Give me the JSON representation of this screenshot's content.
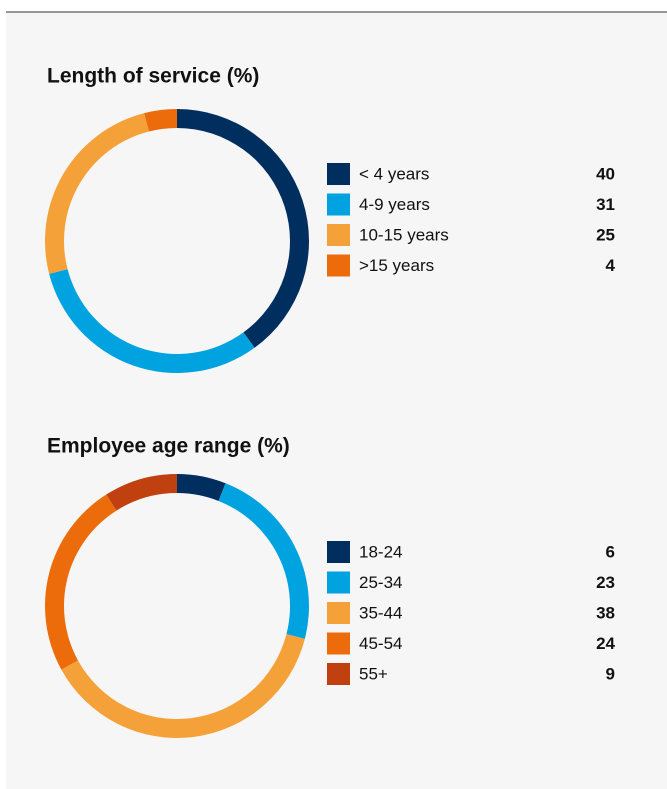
{
  "chart_data": [
    {
      "type": "donut",
      "title": "Length of service (%)",
      "categories": [
        "< 4 years",
        "4-9 years",
        "10-15 years",
        ">15 years"
      ],
      "values": [
        40,
        31,
        25,
        4
      ],
      "colors": [
        "#002f5f",
        "#00a3e0",
        "#f5a13a",
        "#ec6c0c"
      ]
    },
    {
      "type": "donut",
      "title": "Employee age range (%)",
      "categories": [
        "18-24",
        "25-34",
        "35-44",
        "45-54",
        "55+"
      ],
      "values": [
        6,
        23,
        38,
        24,
        9
      ],
      "colors": [
        "#002f5f",
        "#00a3e0",
        "#f5a13a",
        "#ec6c0c",
        "#c0410f"
      ]
    }
  ]
}
